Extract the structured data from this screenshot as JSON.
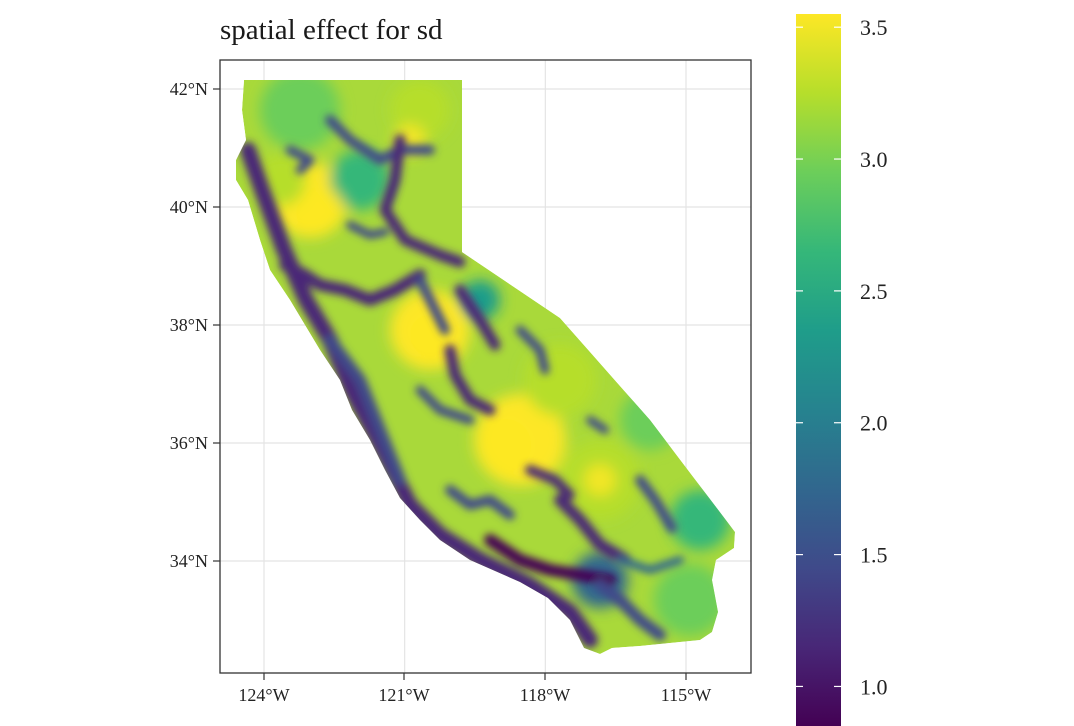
{
  "title": "spatial effect for sd",
  "chart_data": {
    "type": "heatmap",
    "title": "spatial effect for sd",
    "region": "California",
    "x_ticks": [
      "124°W",
      "121°W",
      "118°W",
      "115°W"
    ],
    "y_ticks": [
      "42°N",
      "40°N",
      "38°N",
      "36°N",
      "34°N"
    ],
    "xlim_deg_west": [
      124.9,
      113.8
    ],
    "ylim_deg_north": [
      32.2,
      42.5
    ],
    "grid": true,
    "colorbar": {
      "palette": "viridis",
      "min": 0.85,
      "max": 3.55,
      "ticks": [
        "1.0",
        "1.5",
        "2.0",
        "2.5",
        "3.0",
        "3.5"
      ],
      "placement": "right"
    },
    "colors": {
      "viridis": [
        "#440154",
        "#482777",
        "#3f4a8a",
        "#31678e",
        "#26838f",
        "#1f9d8a",
        "#35b779",
        "#6cce5a",
        "#b6de2b",
        "#fde725"
      ]
    }
  }
}
